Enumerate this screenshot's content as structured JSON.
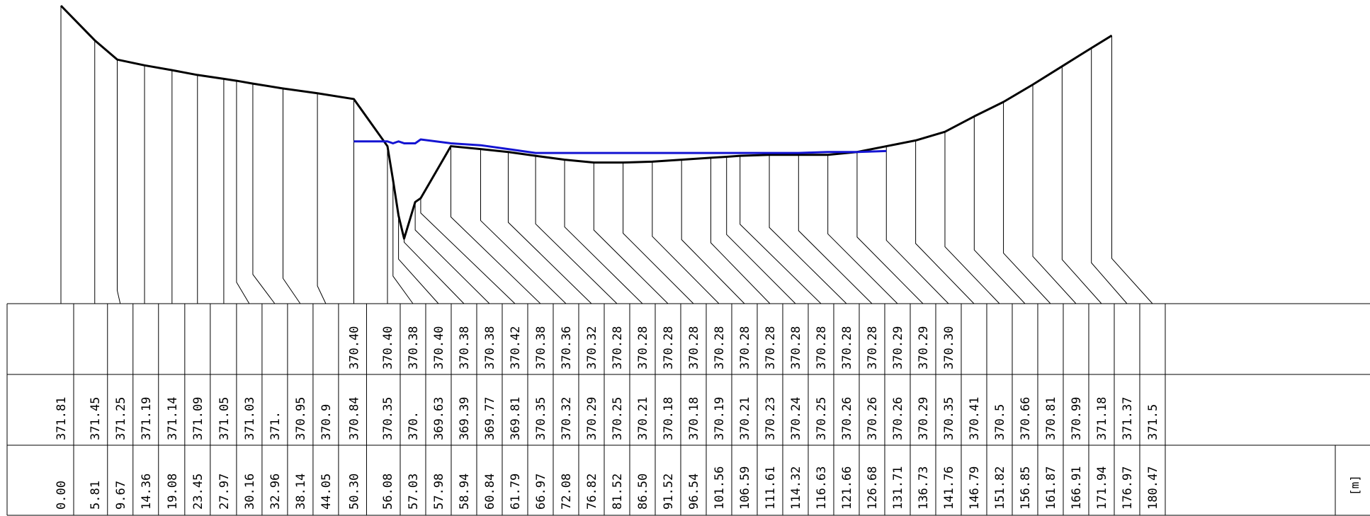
{
  "colors": {
    "terrain": "#000000",
    "water": "#1414d2",
    "grid": "#000000",
    "background": "#ffffff"
  },
  "unit_label": "[m]",
  "chart_data": {
    "type": "line",
    "title": "",
    "series": [
      {
        "role": "terrain"
      },
      {
        "role": "water-surface"
      }
    ],
    "stations": [
      {
        "station": "0.00",
        "ground": "371.81",
        "water": ""
      },
      {
        "station": "5.81",
        "ground": "371.45",
        "water": ""
      },
      {
        "station": "9.67",
        "ground": "371.25",
        "water": ""
      },
      {
        "station": "14.36",
        "ground": "371.19",
        "water": ""
      },
      {
        "station": "19.08",
        "ground": "371.14",
        "water": ""
      },
      {
        "station": "23.45",
        "ground": "371.09",
        "water": ""
      },
      {
        "station": "27.97",
        "ground": "371.05",
        "water": ""
      },
      {
        "station": "30.16",
        "ground": "371.03",
        "water": ""
      },
      {
        "station": "32.96",
        "ground": "371.",
        "water": ""
      },
      {
        "station": "38.14",
        "ground": "370.95",
        "water": ""
      },
      {
        "station": "44.05",
        "ground": "370.9",
        "water": ""
      },
      {
        "station": "50.30",
        "ground": "370.84",
        "water": "370.40"
      },
      {
        "station": "56.08",
        "ground": "370.35",
        "water": "370.40"
      },
      {
        "station": "57.03",
        "ground": "370.",
        "water": "370.38"
      },
      {
        "station": "57.98",
        "ground": "369.63",
        "water": "370.40"
      },
      {
        "station": "58.94",
        "ground": "369.39",
        "water": "370.38"
      },
      {
        "station": "60.84",
        "ground": "369.77",
        "water": "370.38"
      },
      {
        "station": "61.79",
        "ground": "369.81",
        "water": "370.42"
      },
      {
        "station": "66.97",
        "ground": "370.35",
        "water": "370.38"
      },
      {
        "station": "72.08",
        "ground": "370.32",
        "water": "370.36"
      },
      {
        "station": "76.82",
        "ground": "370.29",
        "water": "370.32"
      },
      {
        "station": "81.52",
        "ground": "370.25",
        "water": "370.28"
      },
      {
        "station": "86.50",
        "ground": "370.21",
        "water": "370.28"
      },
      {
        "station": "91.52",
        "ground": "370.18",
        "water": "370.28"
      },
      {
        "station": "96.54",
        "ground": "370.18",
        "water": "370.28"
      },
      {
        "station": "101.56",
        "ground": "370.19",
        "water": "370.28"
      },
      {
        "station": "106.59",
        "ground": "370.21",
        "water": "370.28"
      },
      {
        "station": "111.61",
        "ground": "370.23",
        "water": "370.28"
      },
      {
        "station": "114.32",
        "ground": "370.24",
        "water": "370.28"
      },
      {
        "station": "116.63",
        "ground": "370.25",
        "water": "370.28"
      },
      {
        "station": "121.66",
        "ground": "370.26",
        "water": "370.28"
      },
      {
        "station": "126.68",
        "ground": "370.26",
        "water": "370.28"
      },
      {
        "station": "131.71",
        "ground": "370.26",
        "water": "370.29"
      },
      {
        "station": "136.73",
        "ground": "370.29",
        "water": "370.29"
      },
      {
        "station": "141.76",
        "ground": "370.35",
        "water": "370.30"
      },
      {
        "station": "146.79",
        "ground": "370.41",
        "water": ""
      },
      {
        "station": "151.82",
        "ground": "370.5",
        "water": ""
      },
      {
        "station": "156.85",
        "ground": "370.66",
        "water": ""
      },
      {
        "station": "161.87",
        "ground": "370.81",
        "water": ""
      },
      {
        "station": "166.91",
        "ground": "370.99",
        "water": ""
      },
      {
        "station": "171.94",
        "ground": "371.18",
        "water": ""
      },
      {
        "station": "176.97",
        "ground": "371.37",
        "water": ""
      },
      {
        "station": "180.47",
        "ground": "371.5",
        "water": ""
      }
    ]
  }
}
